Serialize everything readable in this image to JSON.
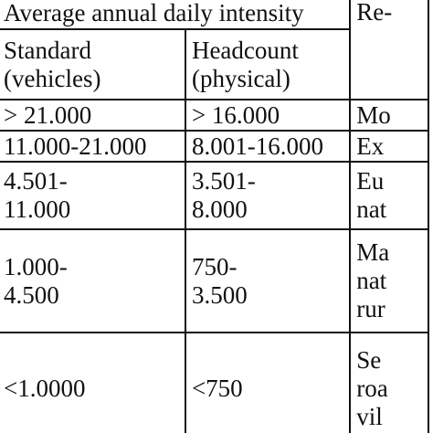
{
  "table": {
    "header": {
      "group_label": "Average annual daily intensity",
      "third_col_partial": "Re-",
      "col1": [
        "Standard",
        "(vehicles)"
      ],
      "col2": [
        "Headcount",
        "(physical)"
      ]
    },
    "rows": [
      {
        "col1": [
          "> 21.000"
        ],
        "col2": [
          "> 16.000"
        ],
        "col3": [
          "Mo"
        ]
      },
      {
        "col1": [
          "11.000-21.000"
        ],
        "col2": [
          "8.001-16.000"
        ],
        "col3": [
          "Ex"
        ]
      },
      {
        "col1": [
          "4.501-",
          "11.000"
        ],
        "col2": [
          "3.501-",
          "8.000"
        ],
        "col3": [
          "Eu",
          "nat"
        ]
      },
      {
        "col1": [
          "1.000-",
          "4.500"
        ],
        "col2": [
          "750-",
          "3.500"
        ],
        "col3": [
          "Ma",
          "nat",
          "rur"
        ]
      },
      {
        "col1": [
          "<1.0000"
        ],
        "col2": [
          "<750"
        ],
        "col3": [
          "Se",
          "roa",
          "vil"
        ]
      }
    ]
  }
}
